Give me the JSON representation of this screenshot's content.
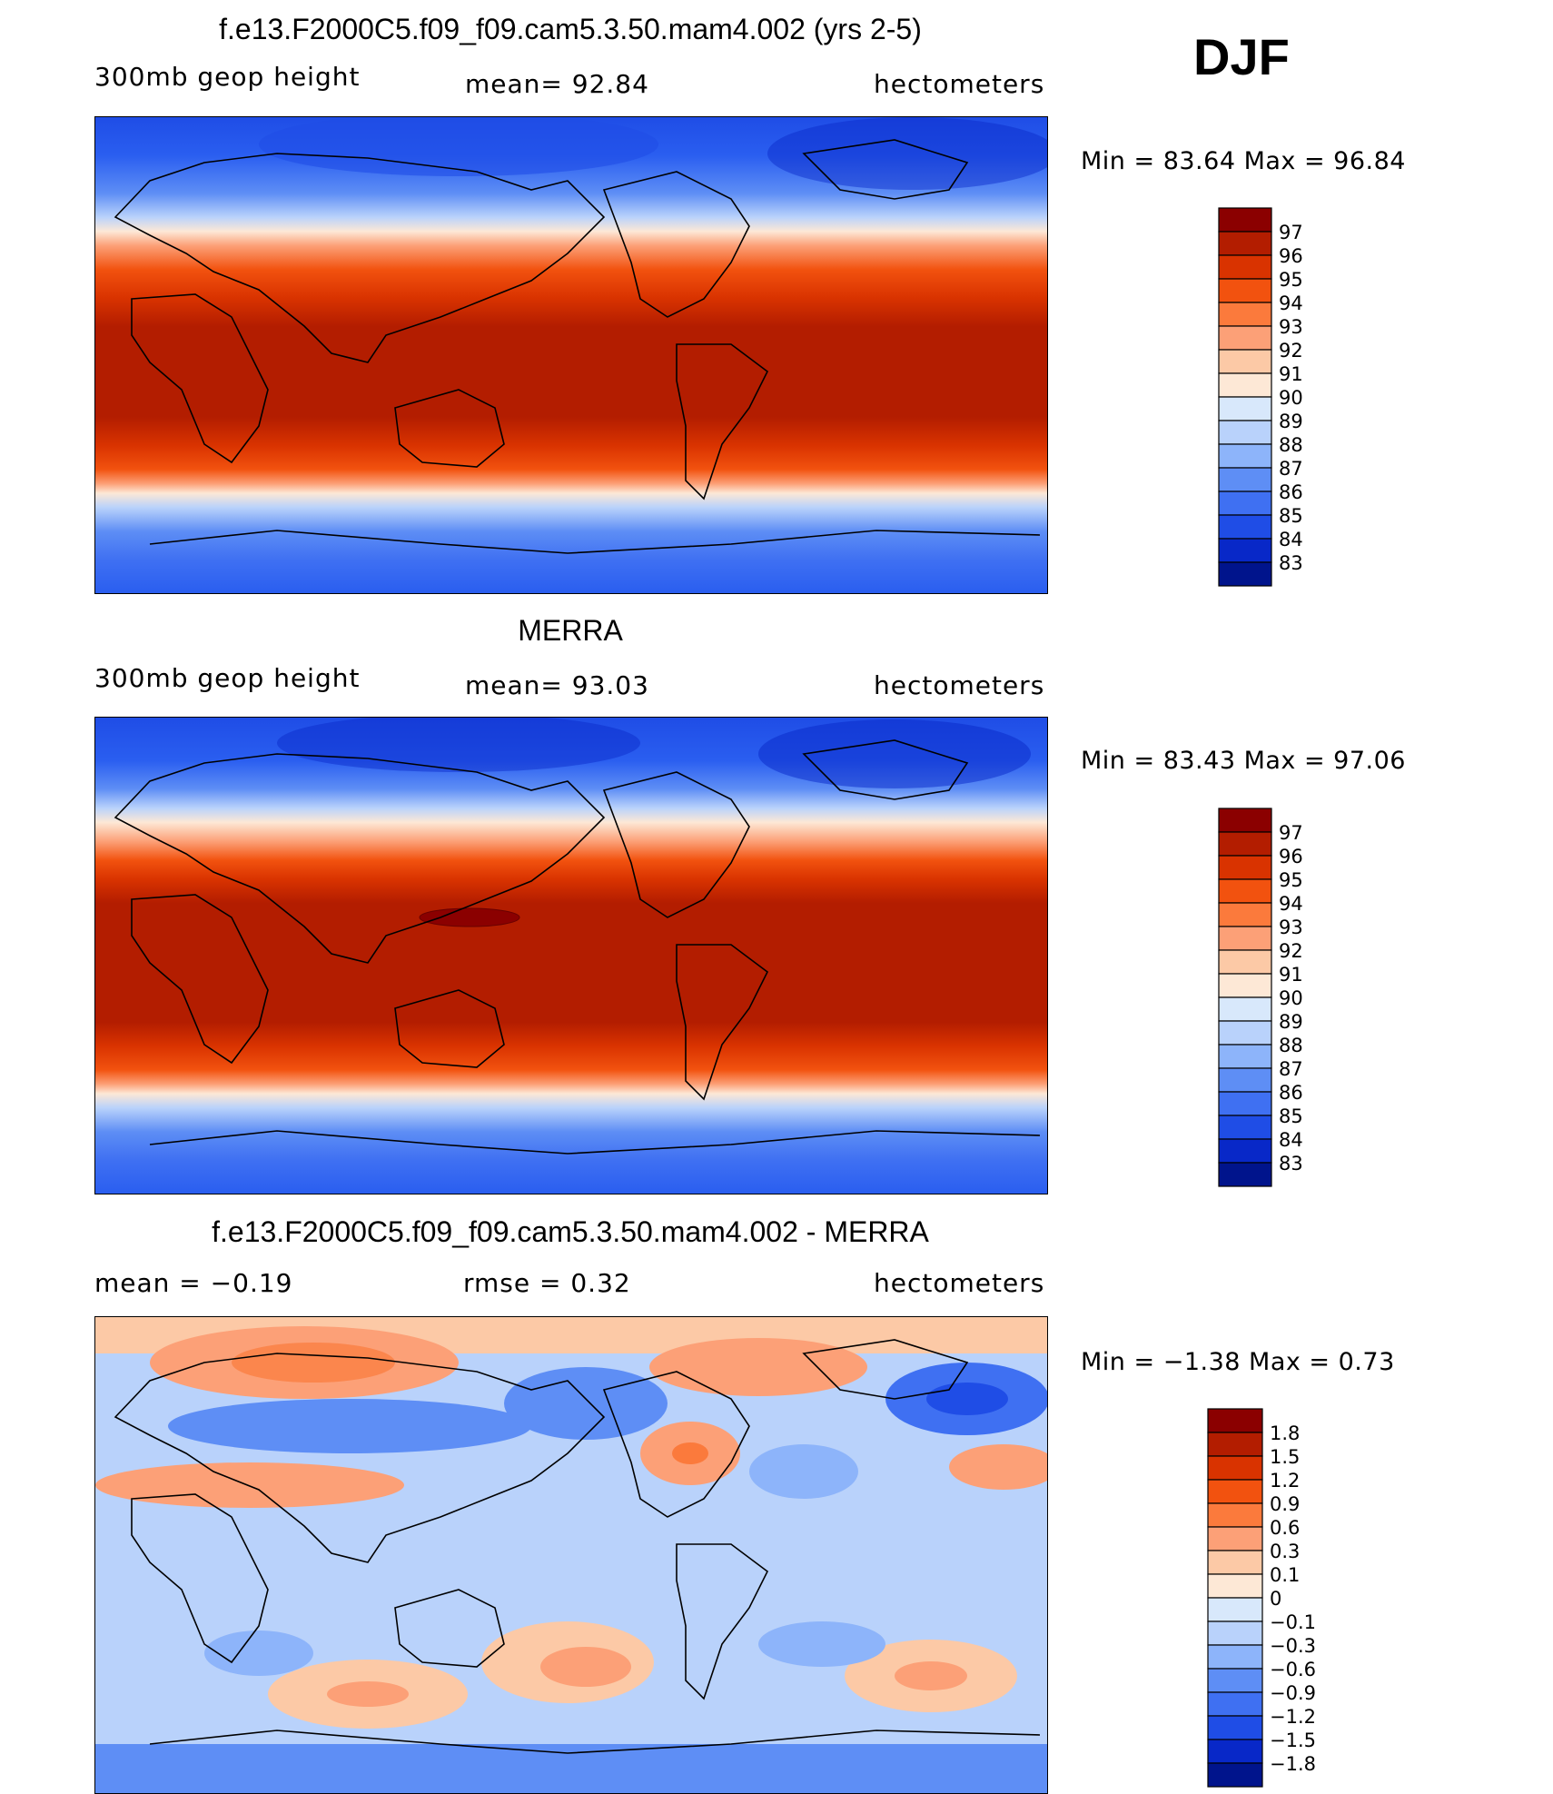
{
  "season": "DJF",
  "panels": [
    {
      "id": "model",
      "title": "f.e13.F2000C5.f09_f09.cam5.3.50.mam4.002 (yrs 2-5)",
      "left_label": "300mb  geop  height",
      "center_label": "mean=   92.84",
      "right_label": "hectometers",
      "minmax": "Min  =    83.64  Max  =    96.84",
      "colorbar": {
        "labels": [
          "97",
          "96",
          "95",
          "94",
          "93",
          "92",
          "91",
          "90",
          "89",
          "88",
          "87",
          "86",
          "85",
          "84",
          "83"
        ],
        "colors": [
          "#8b0000",
          "#b31d00",
          "#d93300",
          "#f2520f",
          "#fb7a3c",
          "#fca077",
          "#fcc9a6",
          "#fde8d6",
          "#d8e8fb",
          "#b9d2fb",
          "#8db4fa",
          "#5e8ef5",
          "#3f70f2",
          "#1f4de6",
          "#0828c8",
          "#00148c"
        ]
      }
    },
    {
      "id": "obs",
      "title": "MERRA",
      "left_label": "300mb  geop  height",
      "center_label": "mean=   93.03",
      "right_label": "hectometers",
      "minmax": "Min  =    83.43  Max  =    97.06",
      "colorbar": {
        "labels": [
          "97",
          "96",
          "95",
          "94",
          "93",
          "92",
          "91",
          "90",
          "89",
          "88",
          "87",
          "86",
          "85",
          "84",
          "83"
        ],
        "colors": [
          "#8b0000",
          "#b31d00",
          "#d93300",
          "#f2520f",
          "#fb7a3c",
          "#fca077",
          "#fcc9a6",
          "#fde8d6",
          "#d8e8fb",
          "#b9d2fb",
          "#8db4fa",
          "#5e8ef5",
          "#3f70f2",
          "#1f4de6",
          "#0828c8",
          "#00148c"
        ]
      }
    },
    {
      "id": "diff",
      "title": "f.e13.F2000C5.f09_f09.cam5.3.50.mam4.002 - MERRA",
      "left_label": "mean  =    −0.19",
      "center_label": "rmse  =     0.32",
      "right_label": "hectometers",
      "minmax": "Min  =    −1.38  Max  =      0.73",
      "colorbar": {
        "labels": [
          "1.8",
          "1.5",
          "1.2",
          "0.9",
          "0.6",
          "0.3",
          "0.1",
          "0",
          "−0.1",
          "−0.3",
          "−0.6",
          "−0.9",
          "−1.2",
          "−1.5",
          "−1.8"
        ],
        "colors": [
          "#8b0000",
          "#b31d00",
          "#d93300",
          "#f2520f",
          "#fb7a3c",
          "#fca077",
          "#fcc9a6",
          "#fde8d6",
          "#d8e8fb",
          "#b9d2fb",
          "#8db4fa",
          "#5e8ef5",
          "#3f70f2",
          "#1f4de6",
          "#0828c8",
          "#00148c"
        ]
      }
    }
  ]
}
